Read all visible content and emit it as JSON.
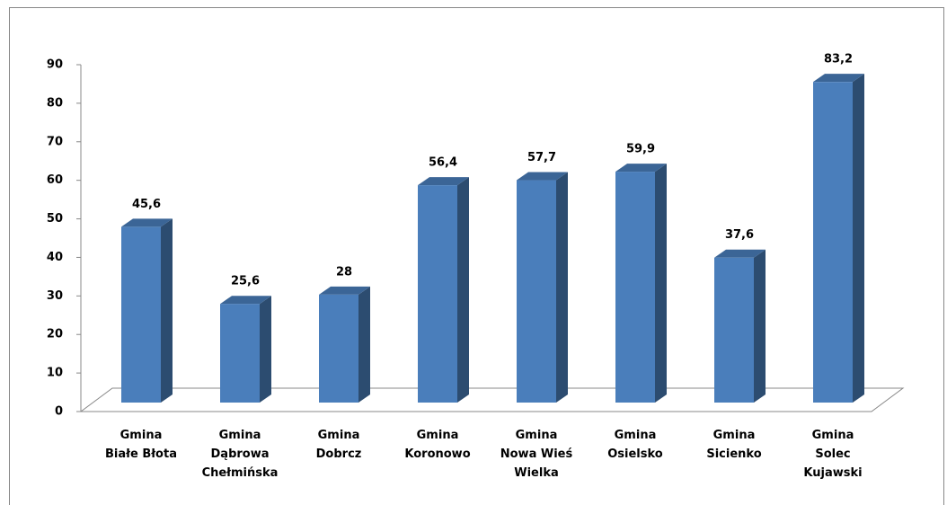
{
  "chart_data": {
    "type": "bar",
    "categories": [
      "Gmina\nBiałe Błota",
      "Gmina\nDąbrowa\nChełmińska",
      "Gmina\nDobrcz",
      "Gmina\nKoronowo",
      "Gmina\nNowa Wieś\nWielka",
      "Gmina\nOsielsko",
      "Gmina\nSicienko",
      "Gmina\nSolec\nKujawski"
    ],
    "values": [
      45.6,
      25.6,
      28,
      56.4,
      57.7,
      59.9,
      37.6,
      83.2
    ],
    "value_labels": [
      "45,6",
      "25,6",
      "28",
      "56,4",
      "57,7",
      "59,9",
      "37,6",
      "83,2"
    ],
    "color": "#4a7ebb",
    "ylim": [
      0,
      90
    ],
    "yticks": [
      0,
      10,
      20,
      30,
      40,
      50,
      60,
      70,
      80,
      90
    ]
  }
}
